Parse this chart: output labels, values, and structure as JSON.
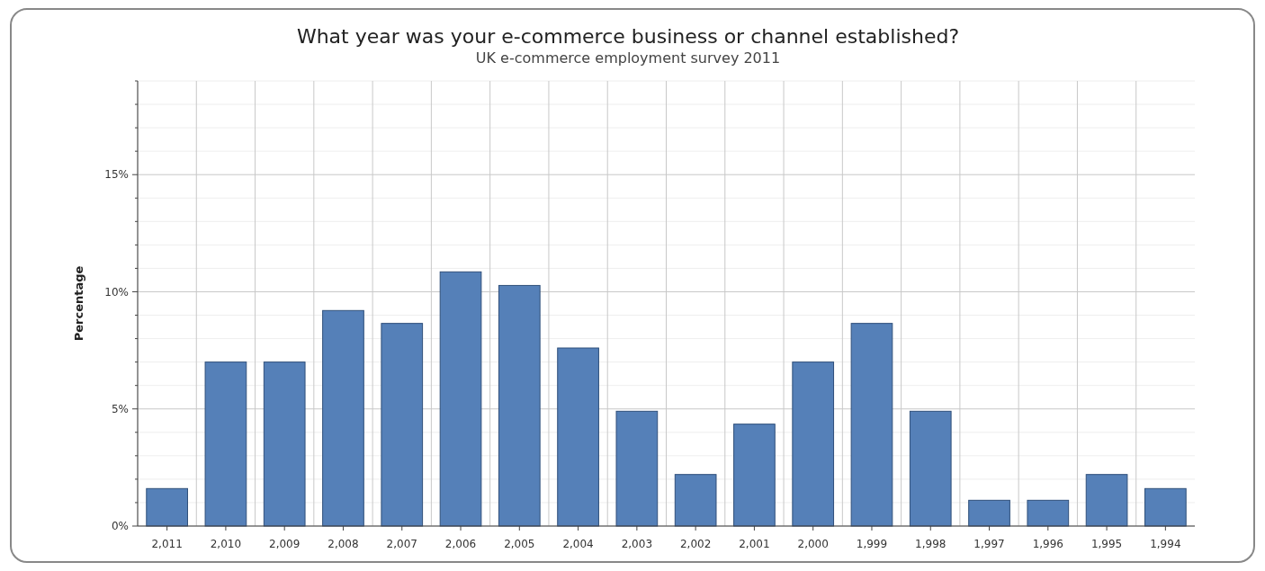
{
  "chart_data": {
    "type": "bar",
    "title": "What year was your e-commerce business or channel established?",
    "subtitle": "UK e-commerce employment survey 2011",
    "ylabel": "Percentage",
    "categories": [
      "2,011",
      "2,010",
      "2,009",
      "2,008",
      "2,007",
      "2,006",
      "2,005",
      "2,004",
      "2,003",
      "2,002",
      "2,001",
      "2,000",
      "1,999",
      "1,998",
      "1,997",
      "1,996",
      "1,995",
      "1,994"
    ],
    "values": [
      1.6,
      7.0,
      7.0,
      9.2,
      8.65,
      10.85,
      10.27,
      7.6,
      4.9,
      2.2,
      4.35,
      7.0,
      8.65,
      4.9,
      1.1,
      1.1,
      2.2,
      1.6
    ],
    "color": "#5580b8",
    "ylim": [
      0,
      19
    ],
    "yticks": [
      {
        "value": 0,
        "label": "0%"
      },
      {
        "value": 1,
        "label": null
      },
      {
        "value": 2,
        "label": null
      },
      {
        "value": 3,
        "label": null
      },
      {
        "value": 4,
        "label": null
      },
      {
        "value": 5,
        "label": "5%"
      },
      {
        "value": 6,
        "label": null
      },
      {
        "value": 7,
        "label": null
      },
      {
        "value": 8,
        "label": null
      },
      {
        "value": 9,
        "label": null
      },
      {
        "value": 10,
        "label": "10%"
      },
      {
        "value": 11,
        "label": null
      },
      {
        "value": 12,
        "label": null
      },
      {
        "value": 13,
        "label": null
      },
      {
        "value": 14,
        "label": null
      },
      {
        "value": 15,
        "label": "15%"
      },
      {
        "value": 16,
        "label": null
      },
      {
        "value": 17,
        "label": null
      },
      {
        "value": 18,
        "label": null
      },
      {
        "value": 19,
        "label": null
      }
    ],
    "grid": true
  }
}
